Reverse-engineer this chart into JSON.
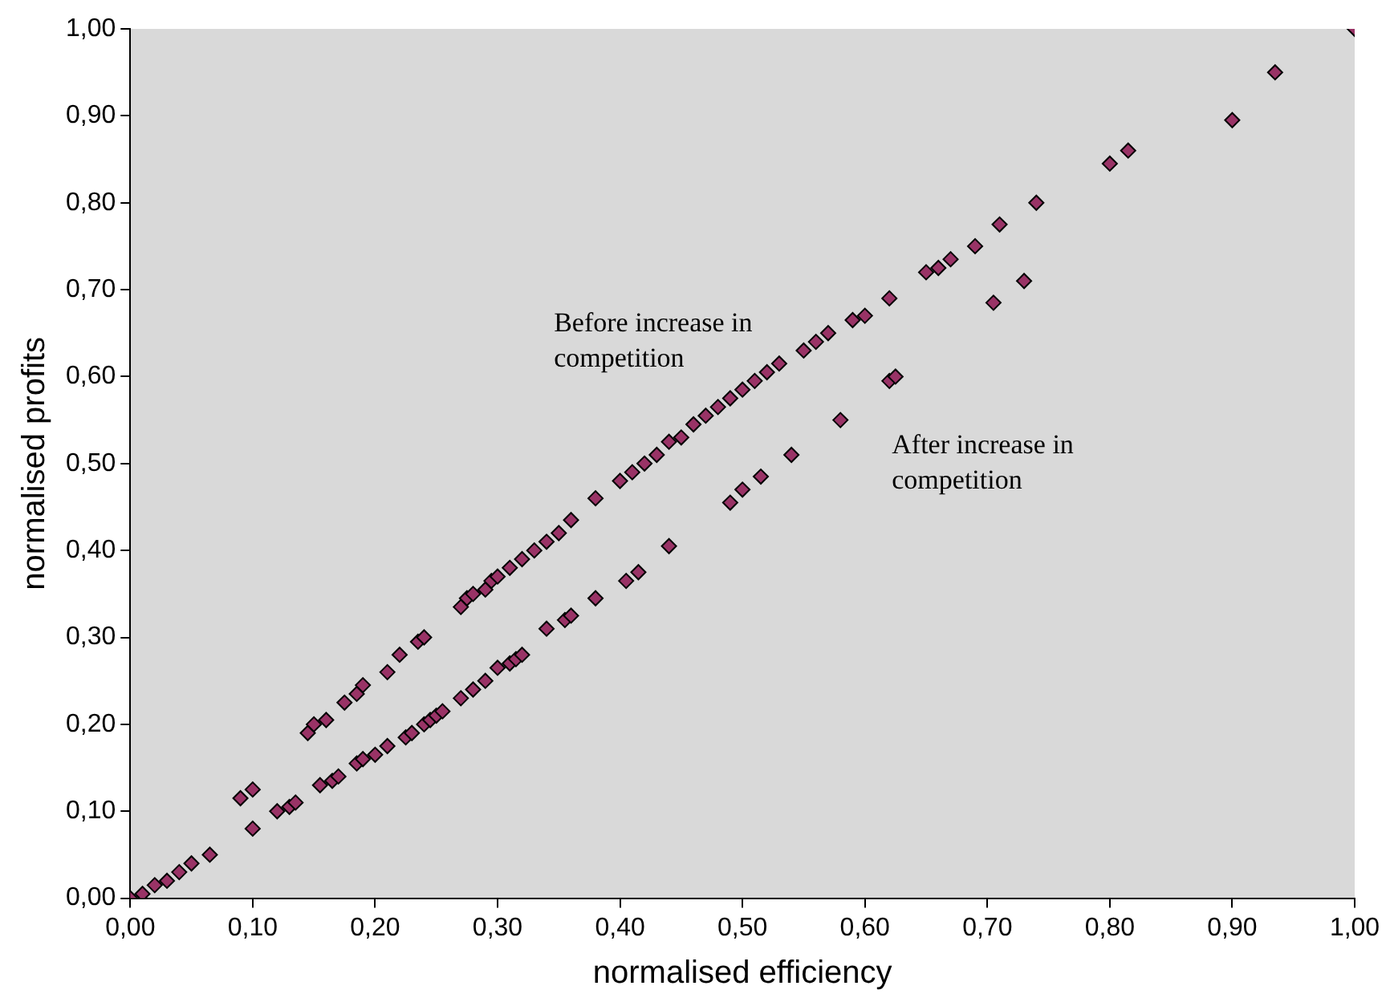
{
  "chart_data": {
    "type": "scatter",
    "xlabel": "normalised efficiency",
    "ylabel": "normalised profits",
    "xlim": [
      0,
      1
    ],
    "ylim": [
      0,
      1
    ],
    "xticks": [
      {
        "value": 0,
        "label": "0,00"
      },
      {
        "value": 0.1,
        "label": "0,10"
      },
      {
        "value": 0.2,
        "label": "0,20"
      },
      {
        "value": 0.3,
        "label": "0,30"
      },
      {
        "value": 0.4,
        "label": "0,40"
      },
      {
        "value": 0.5,
        "label": "0,50"
      },
      {
        "value": 0.6,
        "label": "0,60"
      },
      {
        "value": 0.7,
        "label": "0,70"
      },
      {
        "value": 0.8,
        "label": "0,80"
      },
      {
        "value": 0.9,
        "label": "0,90"
      },
      {
        "value": 1,
        "label": "1,00"
      }
    ],
    "yticks": [
      {
        "value": 0,
        "label": "0,00"
      },
      {
        "value": 0.1,
        "label": "0,10"
      },
      {
        "value": 0.2,
        "label": "0,20"
      },
      {
        "value": 0.3,
        "label": "0,30"
      },
      {
        "value": 0.4,
        "label": "0,40"
      },
      {
        "value": 0.5,
        "label": "0,50"
      },
      {
        "value": 0.6,
        "label": "0,60"
      },
      {
        "value": 0.7,
        "label": "0,70"
      },
      {
        "value": 0.8,
        "label": "0,80"
      },
      {
        "value": 0.9,
        "label": "0,90"
      },
      {
        "value": 1,
        "label": "1,00"
      }
    ],
    "grid": false,
    "legend": false,
    "marker": "diamond",
    "annotations": [
      "Before increase in\ncompetition",
      "After increase in\ncompetition"
    ],
    "series": [
      {
        "color": "#993366",
        "x": [
          0,
          0.01,
          0.02,
          0.03,
          0.04,
          0.05,
          0.065,
          0.09,
          0.1,
          0.145,
          0.15,
          0.16,
          0.175,
          0.185,
          0.19,
          0.21,
          0.22,
          0.235,
          0.24,
          0.27,
          0.275,
          0.28,
          0.29,
          0.295,
          0.3,
          0.31,
          0.32,
          0.33,
          0.34,
          0.35,
          0.36,
          0.38,
          0.4,
          0.41,
          0.42,
          0.43,
          0.44,
          0.45,
          0.46,
          0.47,
          0.48,
          0.49,
          0.5,
          0.51,
          0.52,
          0.53,
          0.55,
          0.56,
          0.57,
          0.59,
          0.6,
          0.62,
          0.65,
          0.66,
          0.67,
          0.69,
          0.71,
          0.74,
          0.8,
          0.815,
          0.935,
          1
        ],
        "values": [
          0,
          0.005,
          0.015,
          0.02,
          0.03,
          0.04,
          0.05,
          0.115,
          0.125,
          0.19,
          0.2,
          0.205,
          0.225,
          0.235,
          0.245,
          0.26,
          0.28,
          0.295,
          0.3,
          0.335,
          0.345,
          0.35,
          0.355,
          0.365,
          0.37,
          0.38,
          0.39,
          0.4,
          0.41,
          0.42,
          0.435,
          0.46,
          0.48,
          0.49,
          0.5,
          0.51,
          0.525,
          0.53,
          0.545,
          0.555,
          0.565,
          0.575,
          0.585,
          0.595,
          0.605,
          0.615,
          0.63,
          0.64,
          0.65,
          0.665,
          0.67,
          0.69,
          0.72,
          0.725,
          0.735,
          0.75,
          0.775,
          0.8,
          0.845,
          0.86,
          0.95,
          1
        ]
      },
      {
        "color": "#993366",
        "x": [
          0.1,
          0.12,
          0.13,
          0.135,
          0.155,
          0.165,
          0.17,
          0.185,
          0.19,
          0.2,
          0.21,
          0.225,
          0.23,
          0.24,
          0.245,
          0.25,
          0.255,
          0.27,
          0.28,
          0.29,
          0.3,
          0.31,
          0.315,
          0.32,
          0.34,
          0.355,
          0.36,
          0.38,
          0.405,
          0.415,
          0.44,
          0.49,
          0.5,
          0.515,
          0.54,
          0.58,
          0.62,
          0.625,
          0.705,
          0.73,
          0.9
        ],
        "values": [
          0.08,
          0.1,
          0.105,
          0.11,
          0.13,
          0.135,
          0.14,
          0.155,
          0.16,
          0.165,
          0.175,
          0.185,
          0.19,
          0.2,
          0.205,
          0.21,
          0.215,
          0.23,
          0.24,
          0.25,
          0.265,
          0.27,
          0.275,
          0.28,
          0.31,
          0.32,
          0.325,
          0.345,
          0.365,
          0.375,
          0.405,
          0.455,
          0.47,
          0.485,
          0.51,
          0.55,
          0.595,
          0.6,
          0.685,
          0.71,
          0.895
        ]
      }
    ]
  }
}
